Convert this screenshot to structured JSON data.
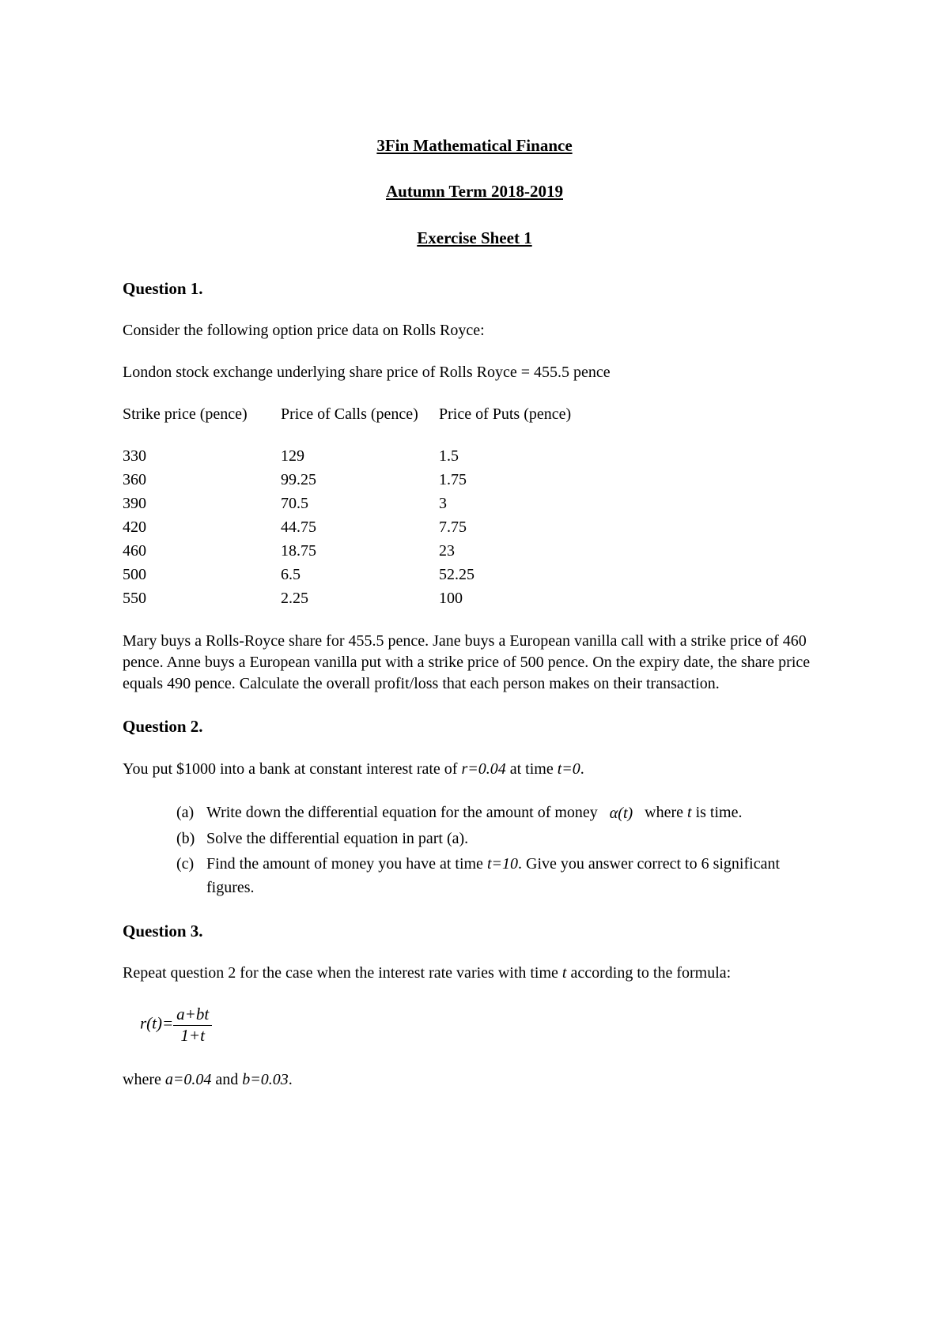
{
  "header": {
    "course_title": "3Fin Mathematical Finance",
    "term": "Autumn Term 2018-2019",
    "sheet": "Exercise Sheet 1"
  },
  "q1": {
    "header": "Question 1.",
    "intro": "Consider the following option price data on Rolls Royce:",
    "share_price_line": "London stock exchange underlying share price of Rolls Royce = 455.5 pence",
    "table": {
      "col_strike": "Strike price (pence)",
      "col_calls": "Price of Calls (pence)",
      "col_puts": "Price of Puts (pence)",
      "rows": [
        {
          "strike": "330",
          "calls": "129",
          "puts": "1.5"
        },
        {
          "strike": "360",
          "calls": "99.25",
          "puts": "1.75"
        },
        {
          "strike": "390",
          "calls": "70.5",
          "puts": "3"
        },
        {
          "strike": "420",
          "calls": "44.75",
          "puts": "7.75"
        },
        {
          "strike": "460",
          "calls": "18.75",
          "puts": "23"
        },
        {
          "strike": "500",
          "calls": "6.5",
          "puts": "52.25"
        },
        {
          "strike": "550",
          "calls": "2.25",
          "puts": "100"
        }
      ]
    },
    "scenario": "Mary buys a Rolls-Royce share for 455.5 pence. Jane buys a European vanilla call with a strike price of 460 pence. Anne buys a European vanilla put with a strike price of 500 pence. On the expiry date, the share price equals 490 pence. Calculate the overall profit/loss that each person makes on their transaction."
  },
  "q2": {
    "header": "Question 2.",
    "intro_pre": "You put $1000 into a bank at constant interest rate of ",
    "intro_r": "r=0.04",
    "intro_mid": " at time ",
    "intro_t": "t=0",
    "intro_post": ".",
    "items": {
      "a_marker": "(a)",
      "a_pre": "Write down the differential equation for the amount of money ",
      "a_alpha": "α(t)",
      "a_mid": " where ",
      "a_t": "t",
      "a_post": " is time.",
      "b_marker": "(b)",
      "b_text": "Solve the differential equation in part (a).",
      "c_marker": "(c)",
      "c_pre": "Find the amount of money you have at time ",
      "c_t": "t=10",
      "c_post": ". Give you answer correct to 6 significant figures."
    }
  },
  "q3": {
    "header": "Question 3.",
    "intro_pre": "Repeat question 2 for the case when the interest rate varies with time ",
    "intro_t": "t",
    "intro_post": " according to the formula:",
    "formula": {
      "lhs": "r(t)=",
      "num": "a+bt",
      "den": "1+t"
    },
    "where_pre": "where ",
    "where_a": "a=0.04",
    "where_mid": " and ",
    "where_b": "b=0.03",
    "where_post": "."
  },
  "colors": {
    "text": "#000000",
    "background": "#ffffff"
  },
  "typography": {
    "base_fontsize_pt": 15,
    "font_family": "Georgia, Times New Roman, serif"
  }
}
